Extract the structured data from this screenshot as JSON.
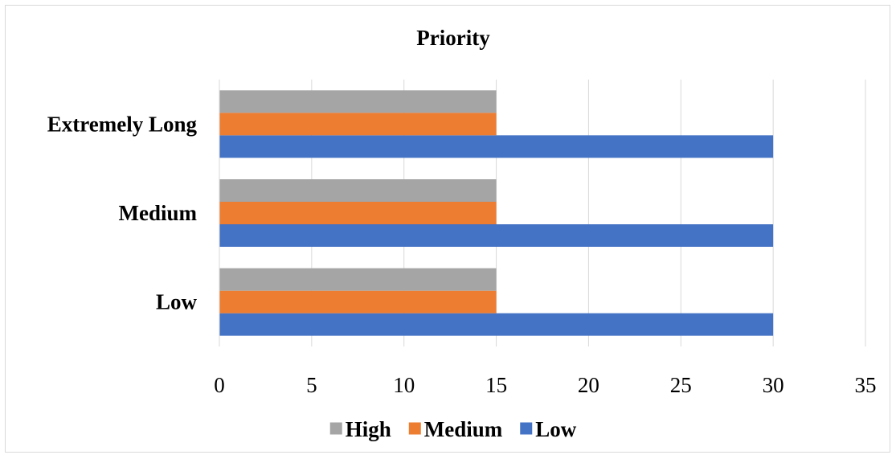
{
  "chart_data": {
    "type": "bar",
    "orientation": "horizontal",
    "title": "Priority",
    "xlabel": "",
    "ylabel": "",
    "categories": [
      "Low",
      "Medium",
      "Extremely Long"
    ],
    "series": [
      {
        "name": "Low",
        "values": [
          30,
          30,
          30
        ],
        "color": "#4472C4"
      },
      {
        "name": "Medium",
        "values": [
          15,
          15,
          15
        ],
        "color": "#ED7D31"
      },
      {
        "name": "High",
        "values": [
          15,
          15,
          15
        ],
        "color": "#A5A5A5"
      }
    ],
    "xlim": [
      0,
      35
    ],
    "xticks": [
      "0",
      "5",
      "10",
      "15",
      "20",
      "25",
      "30",
      "35"
    ],
    "grid": true,
    "legend": {
      "position": "bottom",
      "items": [
        "High",
        "Medium",
        "Low"
      ]
    }
  }
}
